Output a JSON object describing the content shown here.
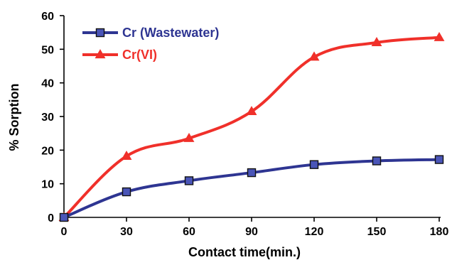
{
  "chart_data": {
    "type": "line",
    "title": "",
    "xlabel": "Contact time(min.)",
    "ylabel": "% Sorption",
    "x": [
      0,
      30,
      60,
      90,
      120,
      150,
      180
    ],
    "xticks": [
      "0",
      "30",
      "60",
      "90",
      "120",
      "150",
      "180"
    ],
    "yticks": [
      "0",
      "10",
      "20",
      "30",
      "40",
      "50",
      "60"
    ],
    "xlim": [
      0,
      180
    ],
    "ylim": [
      0,
      60
    ],
    "grid": false,
    "legend_position": "top-left",
    "series": [
      {
        "name": "Cr (Wastewater)",
        "values": [
          0,
          7.6,
          10.9,
          13.3,
          15.7,
          16.8,
          17.2
        ],
        "color": "#2e3592",
        "marker": "square",
        "smooth": true
      },
      {
        "name": "Cr(VI)",
        "values": [
          0,
          18.2,
          23.5,
          31.5,
          47.7,
          52.0,
          53.5
        ],
        "color": "#f0302a",
        "marker": "triangle",
        "smooth": true
      }
    ]
  }
}
